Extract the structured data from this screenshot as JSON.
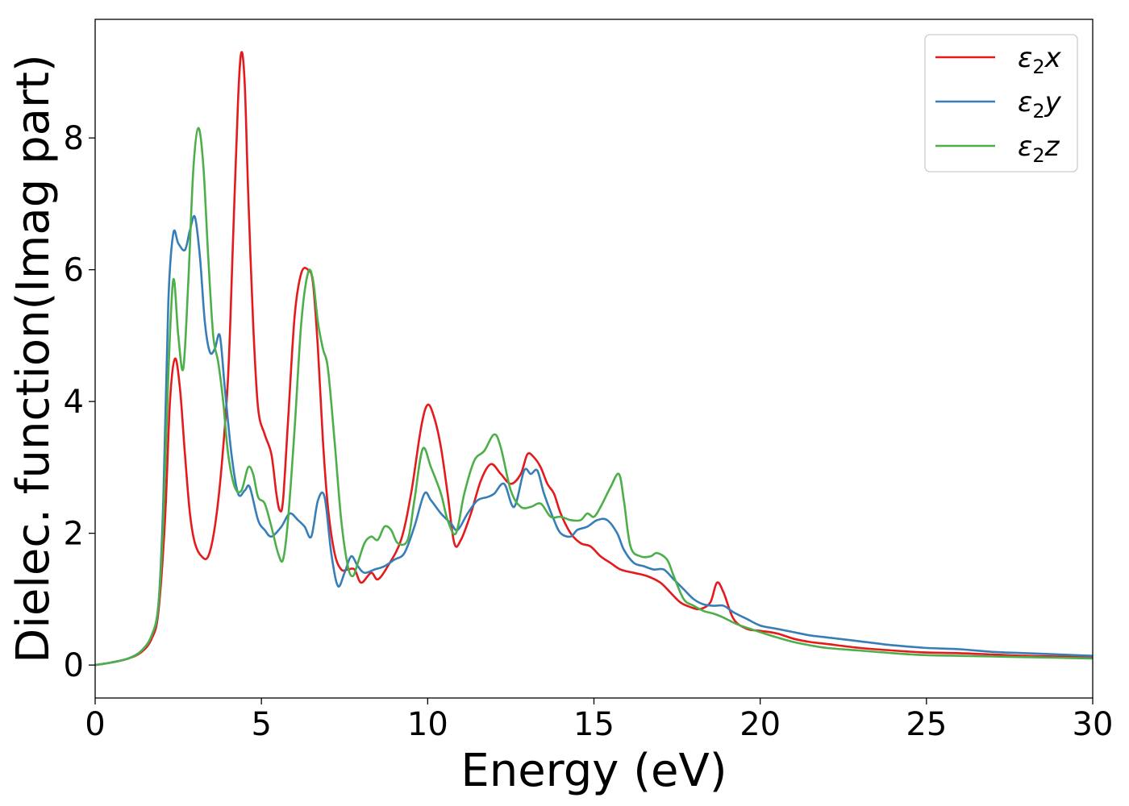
{
  "chart_data": {
    "type": "line",
    "title": "",
    "xlabel": "Energy (eV)",
    "ylabel": "Dielec. function(Imag part)",
    "xlim": [
      0,
      30
    ],
    "ylim": [
      -0.5,
      9.8
    ],
    "xticks": [
      0,
      5,
      10,
      15,
      20,
      25,
      30
    ],
    "yticks": [
      0,
      2,
      4,
      6,
      8
    ],
    "grid": false,
    "legend_position": "top-right",
    "series": [
      {
        "name": "ε₂x",
        "legend": {
          "base": "ε",
          "sub": "2",
          "suffix": "x"
        },
        "color": "#e41a1c",
        "points": [
          [
            0,
            0
          ],
          [
            0.5,
            0.04
          ],
          [
            1.0,
            0.1
          ],
          [
            1.4,
            0.2
          ],
          [
            1.7,
            0.4
          ],
          [
            1.9,
            0.8
          ],
          [
            2.1,
            2.2
          ],
          [
            2.25,
            4.0
          ],
          [
            2.4,
            4.65
          ],
          [
            2.55,
            4.2
          ],
          [
            2.7,
            3.2
          ],
          [
            2.85,
            2.3
          ],
          [
            3.0,
            1.85
          ],
          [
            3.2,
            1.65
          ],
          [
            3.4,
            1.65
          ],
          [
            3.6,
            2.1
          ],
          [
            3.8,
            3.0
          ],
          [
            4.0,
            4.4
          ],
          [
            4.15,
            6.5
          ],
          [
            4.3,
            8.6
          ],
          [
            4.4,
            9.3
          ],
          [
            4.5,
            8.8
          ],
          [
            4.6,
            7.2
          ],
          [
            4.75,
            5.2
          ],
          [
            4.9,
            3.9
          ],
          [
            5.1,
            3.5
          ],
          [
            5.3,
            3.2
          ],
          [
            5.45,
            2.6
          ],
          [
            5.55,
            2.35
          ],
          [
            5.65,
            2.5
          ],
          [
            5.8,
            3.7
          ],
          [
            6.0,
            5.3
          ],
          [
            6.2,
            5.95
          ],
          [
            6.4,
            6.0
          ],
          [
            6.55,
            5.8
          ],
          [
            6.7,
            4.8
          ],
          [
            6.85,
            3.4
          ],
          [
            7.0,
            2.4
          ],
          [
            7.2,
            1.7
          ],
          [
            7.4,
            1.45
          ],
          [
            7.6,
            1.45
          ],
          [
            7.8,
            1.45
          ],
          [
            8.0,
            1.25
          ],
          [
            8.3,
            1.4
          ],
          [
            8.5,
            1.3
          ],
          [
            8.8,
            1.5
          ],
          [
            9.2,
            1.9
          ],
          [
            9.5,
            2.6
          ],
          [
            9.8,
            3.6
          ],
          [
            10.0,
            3.95
          ],
          [
            10.2,
            3.75
          ],
          [
            10.4,
            3.3
          ],
          [
            10.6,
            2.6
          ],
          [
            10.8,
            1.85
          ],
          [
            11.0,
            1.9
          ],
          [
            11.3,
            2.3
          ],
          [
            11.6,
            2.8
          ],
          [
            11.9,
            3.05
          ],
          [
            12.2,
            2.9
          ],
          [
            12.5,
            2.75
          ],
          [
            12.8,
            2.9
          ],
          [
            13.0,
            3.2
          ],
          [
            13.2,
            3.15
          ],
          [
            13.4,
            3.0
          ],
          [
            13.6,
            2.75
          ],
          [
            13.8,
            2.6
          ],
          [
            14.0,
            2.3
          ],
          [
            14.3,
            2.0
          ],
          [
            14.6,
            1.85
          ],
          [
            14.9,
            1.8
          ],
          [
            15.2,
            1.65
          ],
          [
            15.5,
            1.55
          ],
          [
            15.8,
            1.45
          ],
          [
            16.2,
            1.4
          ],
          [
            16.6,
            1.35
          ],
          [
            17.0,
            1.25
          ],
          [
            17.3,
            1.1
          ],
          [
            17.6,
            0.95
          ],
          [
            17.9,
            0.88
          ],
          [
            18.2,
            0.85
          ],
          [
            18.5,
            0.95
          ],
          [
            18.7,
            1.25
          ],
          [
            18.9,
            1.1
          ],
          [
            19.2,
            0.7
          ],
          [
            19.6,
            0.55
          ],
          [
            20.0,
            0.52
          ],
          [
            20.5,
            0.48
          ],
          [
            21.0,
            0.4
          ],
          [
            21.5,
            0.35
          ],
          [
            22.0,
            0.32
          ],
          [
            23.0,
            0.26
          ],
          [
            24.0,
            0.22
          ],
          [
            25.0,
            0.19
          ],
          [
            26.0,
            0.18
          ],
          [
            27.0,
            0.16
          ],
          [
            28.0,
            0.14
          ],
          [
            29.0,
            0.13
          ],
          [
            30.0,
            0.12
          ]
        ]
      },
      {
        "name": "ε₂y",
        "legend": {
          "base": "ε",
          "sub": "2",
          "suffix": "y"
        },
        "color": "#377eb8",
        "points": [
          [
            0,
            0
          ],
          [
            0.5,
            0.04
          ],
          [
            1.0,
            0.1
          ],
          [
            1.4,
            0.22
          ],
          [
            1.7,
            0.45
          ],
          [
            1.9,
            0.9
          ],
          [
            2.05,
            2.5
          ],
          [
            2.2,
            5.5
          ],
          [
            2.35,
            6.55
          ],
          [
            2.5,
            6.4
          ],
          [
            2.7,
            6.3
          ],
          [
            2.85,
            6.6
          ],
          [
            3.0,
            6.8
          ],
          [
            3.15,
            6.2
          ],
          [
            3.3,
            5.2
          ],
          [
            3.45,
            4.75
          ],
          [
            3.6,
            4.8
          ],
          [
            3.75,
            5.0
          ],
          [
            3.9,
            4.2
          ],
          [
            4.1,
            3.2
          ],
          [
            4.3,
            2.6
          ],
          [
            4.5,
            2.65
          ],
          [
            4.65,
            2.7
          ],
          [
            4.9,
            2.2
          ],
          [
            5.1,
            2.05
          ],
          [
            5.3,
            1.95
          ],
          [
            5.6,
            2.1
          ],
          [
            5.85,
            2.3
          ],
          [
            6.1,
            2.2
          ],
          [
            6.3,
            2.1
          ],
          [
            6.5,
            1.95
          ],
          [
            6.7,
            2.5
          ],
          [
            6.9,
            2.55
          ],
          [
            7.1,
            1.7
          ],
          [
            7.3,
            1.2
          ],
          [
            7.5,
            1.4
          ],
          [
            7.7,
            1.65
          ],
          [
            7.9,
            1.5
          ],
          [
            8.1,
            1.4
          ],
          [
            8.4,
            1.45
          ],
          [
            8.7,
            1.5
          ],
          [
            9.0,
            1.6
          ],
          [
            9.3,
            1.7
          ],
          [
            9.6,
            2.1
          ],
          [
            9.9,
            2.6
          ],
          [
            10.1,
            2.5
          ],
          [
            10.4,
            2.3
          ],
          [
            10.7,
            2.15
          ],
          [
            10.9,
            2.05
          ],
          [
            11.2,
            2.3
          ],
          [
            11.5,
            2.5
          ],
          [
            11.8,
            2.55
          ],
          [
            12.0,
            2.6
          ],
          [
            12.3,
            2.75
          ],
          [
            12.6,
            2.4
          ],
          [
            12.9,
            2.95
          ],
          [
            13.1,
            2.9
          ],
          [
            13.3,
            2.95
          ],
          [
            13.5,
            2.6
          ],
          [
            13.8,
            2.2
          ],
          [
            14.0,
            2.0
          ],
          [
            14.3,
            1.95
          ],
          [
            14.5,
            2.05
          ],
          [
            14.8,
            2.1
          ],
          [
            15.1,
            2.2
          ],
          [
            15.4,
            2.2
          ],
          [
            15.7,
            2.0
          ],
          [
            15.9,
            1.75
          ],
          [
            16.2,
            1.55
          ],
          [
            16.5,
            1.5
          ],
          [
            16.8,
            1.45
          ],
          [
            17.1,
            1.45
          ],
          [
            17.4,
            1.3
          ],
          [
            17.7,
            1.15
          ],
          [
            18.0,
            1.0
          ],
          [
            18.3,
            0.92
          ],
          [
            18.6,
            0.9
          ],
          [
            18.9,
            0.9
          ],
          [
            19.2,
            0.8
          ],
          [
            19.6,
            0.7
          ],
          [
            20.0,
            0.6
          ],
          [
            20.5,
            0.55
          ],
          [
            21.0,
            0.5
          ],
          [
            21.5,
            0.45
          ],
          [
            22.0,
            0.42
          ],
          [
            23.0,
            0.36
          ],
          [
            24.0,
            0.3
          ],
          [
            25.0,
            0.26
          ],
          [
            26.0,
            0.24
          ],
          [
            27.0,
            0.2
          ],
          [
            28.0,
            0.18
          ],
          [
            29.0,
            0.16
          ],
          [
            30.0,
            0.14
          ]
        ]
      },
      {
        "name": "ε₂z",
        "legend": {
          "base": "ε",
          "sub": "2",
          "suffix": "z"
        },
        "color": "#4daf4a",
        "points": [
          [
            0,
            0
          ],
          [
            0.5,
            0.04
          ],
          [
            1.0,
            0.1
          ],
          [
            1.4,
            0.22
          ],
          [
            1.7,
            0.45
          ],
          [
            1.9,
            0.9
          ],
          [
            2.05,
            2.2
          ],
          [
            2.2,
            4.4
          ],
          [
            2.35,
            5.85
          ],
          [
            2.5,
            5.0
          ],
          [
            2.65,
            4.5
          ],
          [
            2.8,
            5.8
          ],
          [
            2.95,
            7.5
          ],
          [
            3.1,
            8.15
          ],
          [
            3.25,
            7.6
          ],
          [
            3.4,
            6.2
          ],
          [
            3.55,
            5.0
          ],
          [
            3.7,
            4.6
          ],
          [
            3.85,
            4.0
          ],
          [
            4.0,
            3.2
          ],
          [
            4.2,
            2.7
          ],
          [
            4.4,
            2.65
          ],
          [
            4.6,
            3.0
          ],
          [
            4.75,
            2.9
          ],
          [
            4.9,
            2.55
          ],
          [
            5.1,
            2.45
          ],
          [
            5.3,
            2.1
          ],
          [
            5.5,
            1.7
          ],
          [
            5.65,
            1.6
          ],
          [
            5.8,
            2.2
          ],
          [
            6.0,
            3.6
          ],
          [
            6.2,
            5.2
          ],
          [
            6.4,
            5.95
          ],
          [
            6.55,
            5.85
          ],
          [
            6.7,
            5.2
          ],
          [
            6.85,
            4.8
          ],
          [
            7.0,
            4.5
          ],
          [
            7.2,
            3.4
          ],
          [
            7.4,
            2.2
          ],
          [
            7.6,
            1.5
          ],
          [
            7.75,
            1.35
          ],
          [
            7.9,
            1.55
          ],
          [
            8.1,
            1.85
          ],
          [
            8.3,
            1.95
          ],
          [
            8.5,
            1.9
          ],
          [
            8.7,
            2.1
          ],
          [
            8.9,
            2.05
          ],
          [
            9.1,
            1.85
          ],
          [
            9.4,
            1.9
          ],
          [
            9.6,
            2.5
          ],
          [
            9.85,
            3.28
          ],
          [
            10.1,
            3.0
          ],
          [
            10.4,
            2.6
          ],
          [
            10.6,
            2.2
          ],
          [
            10.85,
            2.0
          ],
          [
            11.1,
            2.6
          ],
          [
            11.4,
            3.1
          ],
          [
            11.7,
            3.25
          ],
          [
            12.0,
            3.5
          ],
          [
            12.2,
            3.3
          ],
          [
            12.5,
            2.65
          ],
          [
            12.8,
            2.4
          ],
          [
            13.1,
            2.4
          ],
          [
            13.4,
            2.45
          ],
          [
            13.7,
            2.25
          ],
          [
            14.0,
            2.25
          ],
          [
            14.3,
            2.2
          ],
          [
            14.6,
            2.2
          ],
          [
            14.8,
            2.3
          ],
          [
            15.0,
            2.25
          ],
          [
            15.2,
            2.4
          ],
          [
            15.5,
            2.7
          ],
          [
            15.75,
            2.9
          ],
          [
            15.9,
            2.5
          ],
          [
            16.1,
            1.8
          ],
          [
            16.4,
            1.65
          ],
          [
            16.7,
            1.65
          ],
          [
            16.9,
            1.7
          ],
          [
            17.2,
            1.6
          ],
          [
            17.4,
            1.35
          ],
          [
            17.7,
            1.0
          ],
          [
            18.0,
            0.9
          ],
          [
            18.3,
            0.82
          ],
          [
            18.6,
            0.78
          ],
          [
            18.9,
            0.72
          ],
          [
            19.3,
            0.62
          ],
          [
            19.7,
            0.55
          ],
          [
            20.0,
            0.5
          ],
          [
            20.5,
            0.42
          ],
          [
            21.0,
            0.35
          ],
          [
            21.5,
            0.3
          ],
          [
            22.0,
            0.26
          ],
          [
            23.0,
            0.22
          ],
          [
            24.0,
            0.18
          ],
          [
            25.0,
            0.15
          ],
          [
            26.0,
            0.14
          ],
          [
            27.0,
            0.13
          ],
          [
            28.0,
            0.12
          ],
          [
            29.0,
            0.11
          ],
          [
            30.0,
            0.1
          ]
        ]
      }
    ]
  }
}
